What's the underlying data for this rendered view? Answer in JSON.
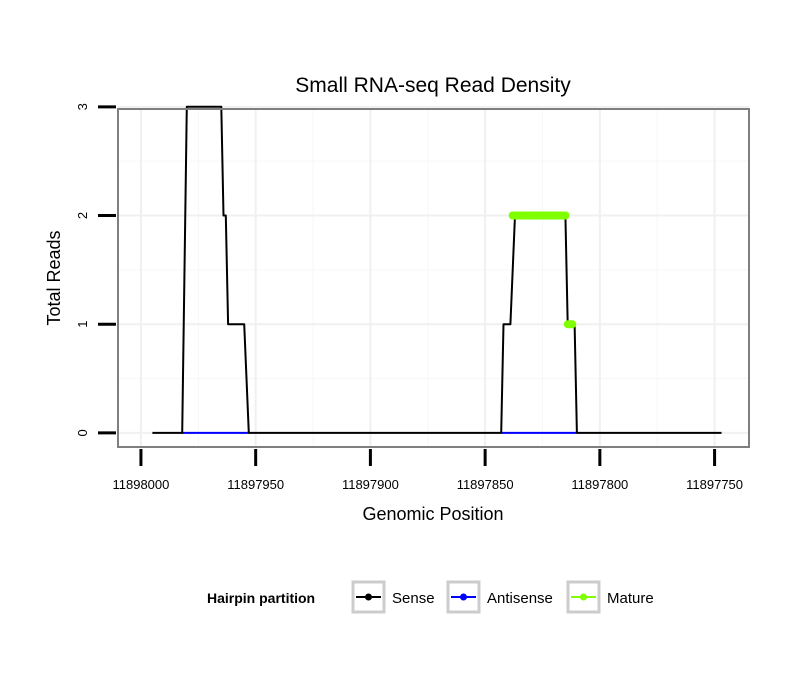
{
  "chart_data": {
    "type": "line",
    "title": "Small RNA-seq Read Density",
    "xlabel": "Genomic Position",
    "ylabel": "Total Reads",
    "x_reversed": true,
    "xlim": [
      11898010,
      11897735
    ],
    "ylim": [
      -0.13,
      2.98
    ],
    "x_ticks": [
      11898000,
      11897950,
      11897900,
      11897850,
      11897800,
      11897750
    ],
    "x_tick_labels": [
      "11898000",
      "11897950",
      "11897900",
      "11897850",
      "11897800",
      "11897750"
    ],
    "y_ticks": [
      0,
      1,
      2,
      3
    ],
    "y_tick_labels": [
      "0",
      "1",
      "2",
      "3"
    ],
    "grid": true,
    "legend": {
      "title": "Hairpin partition",
      "position": "bottom",
      "entries": [
        "Sense",
        "Antisense",
        "Mature"
      ]
    },
    "series": [
      {
        "name": "Sense",
        "color": "#000000",
        "x": [
          11897995,
          11897982,
          11897980,
          11897965,
          11897964,
          11897963,
          11897962,
          11897955,
          11897953,
          11897843,
          11897842,
          11897839,
          11897837,
          11897836,
          11897815,
          11897814,
          11897812,
          11897811,
          11897810,
          11897747
        ],
        "y": [
          0,
          0,
          3,
          3,
          2,
          2,
          1,
          1,
          0,
          0,
          1,
          1,
          2,
          2,
          2,
          1,
          1,
          1,
          0,
          0
        ]
      },
      {
        "name": "Antisense",
        "color": "#0000ff",
        "segments": [
          [
            11897982,
            11897953
          ],
          [
            11897843,
            11897810
          ]
        ],
        "value": 0
      },
      {
        "name": "Mature",
        "color": "#7fff00",
        "segments": [
          {
            "x": [
              11897838,
              11897815
            ],
            "y": 2
          },
          {
            "x": [
              11897814,
              11897812
            ],
            "y": 1
          }
        ]
      }
    ]
  }
}
